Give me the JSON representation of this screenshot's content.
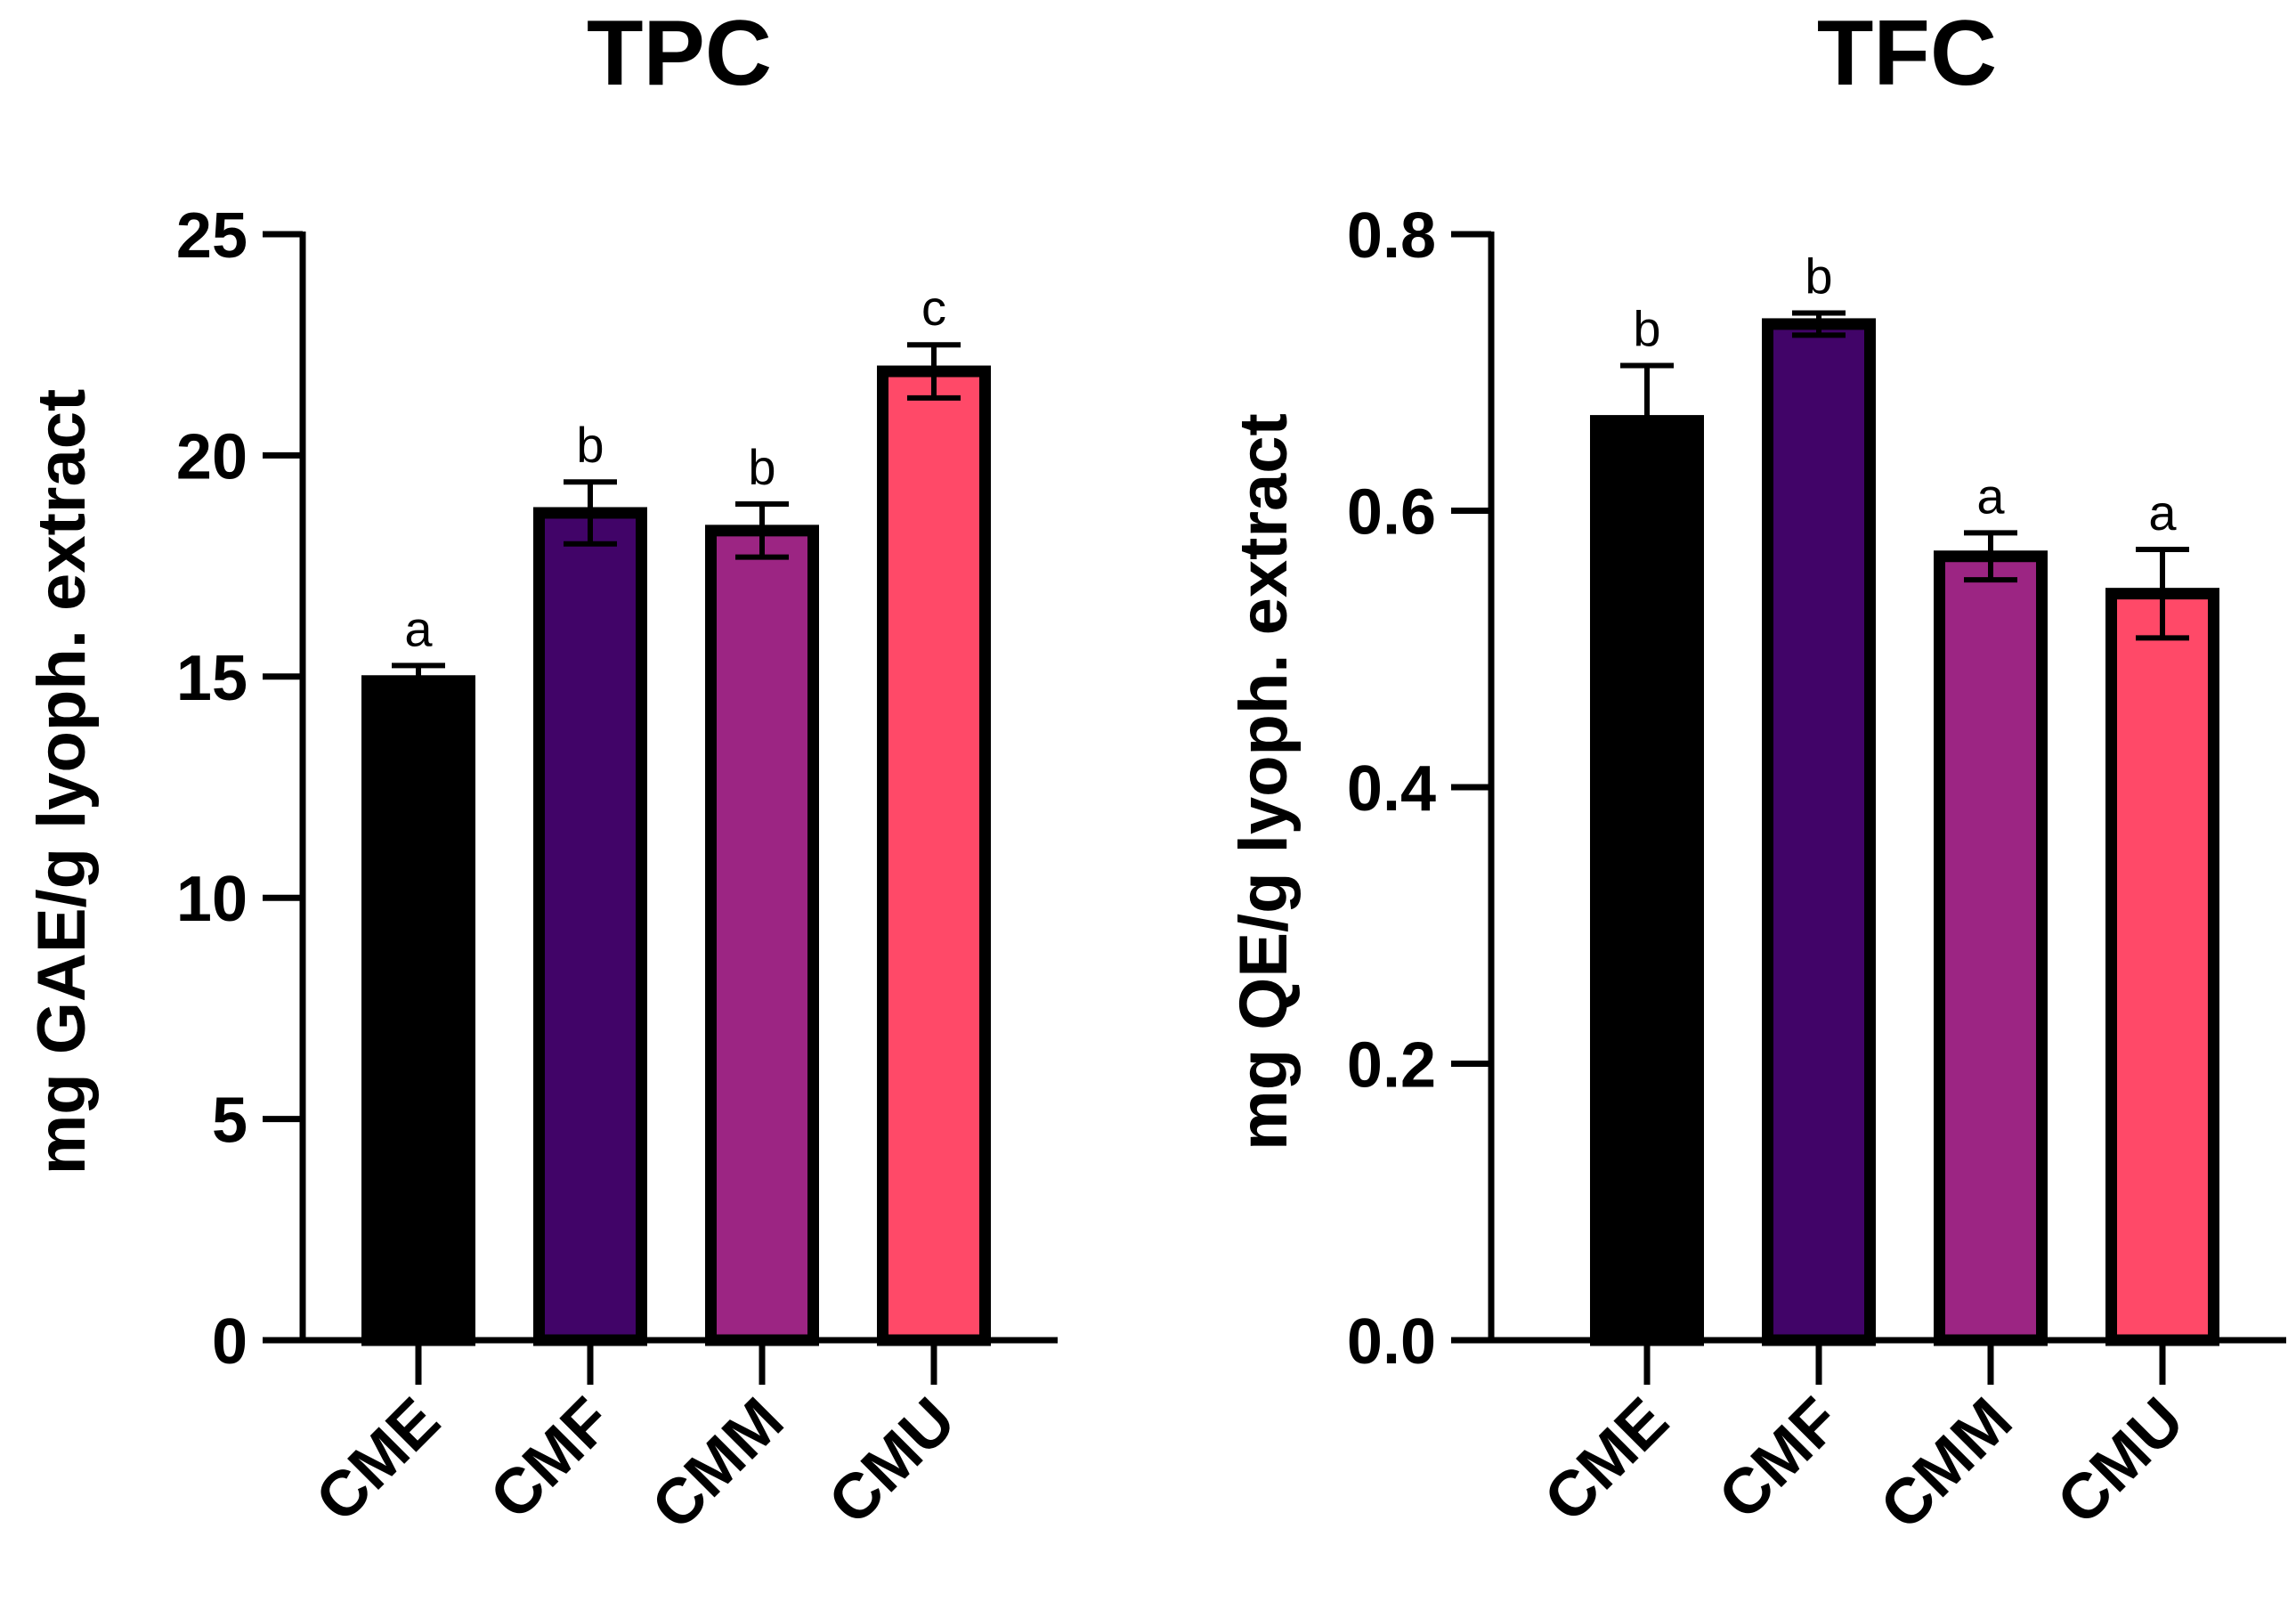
{
  "chart_data": [
    {
      "type": "bar",
      "title": "TPC",
      "ylabel": "mg GAE/g lyoph. extract",
      "xlabel": "",
      "categories": [
        "CME",
        "CMF",
        "CMM",
        "CMU"
      ],
      "values": [
        14.9,
        18.7,
        18.3,
        21.9
      ],
      "errors": [
        0.35,
        0.7,
        0.6,
        0.6
      ],
      "significance": [
        "a",
        "b",
        "b",
        "c"
      ],
      "colors": [
        "#000000",
        "#410468",
        "#9c2583",
        "#ff4968"
      ],
      "ylim": [
        0,
        25
      ],
      "yticks": [
        0,
        5,
        10,
        15,
        20,
        25
      ],
      "ytick_labels": [
        "0",
        "5",
        "10",
        "15",
        "20",
        "25"
      ]
    },
    {
      "type": "bar",
      "title": "TFC",
      "ylabel": "mg QE/g lyoph. extract",
      "xlabel": "",
      "categories": [
        "CME",
        "CMF",
        "CMM",
        "CMU"
      ],
      "values": [
        0.665,
        0.735,
        0.567,
        0.54
      ],
      "errors": [
        0.04,
        0.008,
        0.017,
        0.032
      ],
      "significance": [
        "b",
        "b",
        "a",
        "a"
      ],
      "colors": [
        "#000000",
        "#410468",
        "#9c2583",
        "#ff4968"
      ],
      "ylim": [
        0,
        0.8
      ],
      "yticks": [
        0,
        0.2,
        0.4,
        0.6,
        0.8
      ],
      "ytick_labels": [
        "0.0",
        "0.2",
        "0.4",
        "0.6",
        "0.8"
      ]
    }
  ]
}
